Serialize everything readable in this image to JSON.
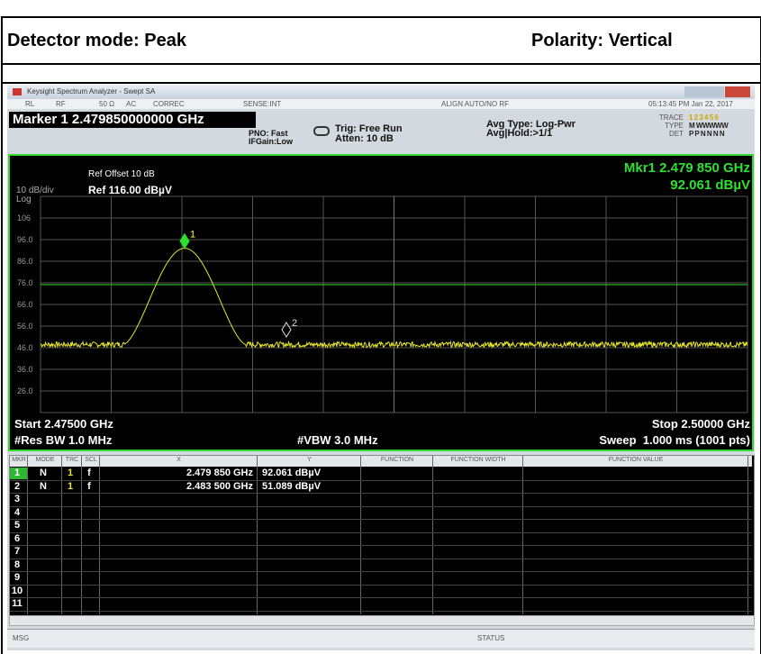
{
  "document": {
    "detector_mode": "Detector mode: Peak",
    "polarity": "Polarity: Vertical"
  },
  "window": {
    "title": "Keysight Spectrum Analyzer - Swept SA",
    "status_bar": [
      "RL",
      "RF",
      "50 Ω",
      "AC",
      "CORREC",
      "SENSE:INT",
      "ALIGN AUTO/NO RF",
      "05:13:45 PM Jan 22, 2017"
    ],
    "marker_readout": "Marker 1 2.479850000000 GHz",
    "settings": [
      "PNO: Fast",
      "IFGain:Low",
      "Trig: Free Run",
      "Atten: 10 dB",
      "Avg Type: Log-Pwr",
      "Avg|Hold:>1/1"
    ],
    "trace_labels": [
      "TRACE",
      "TYPE",
      "DET"
    ],
    "trace_values": [
      "1 2 3 4 5 6",
      "M WWWWW",
      "P P N N N N"
    ]
  },
  "display": {
    "ref_offset": "Ref Offset 10 dB",
    "scale": "10 dB/div",
    "ref_level": "Ref 116.00 dBµV",
    "scale_type": "Log",
    "marker_freq": "Mkr1 2.479 850 GHz",
    "marker_level": "92.061 dBµV",
    "y_labels": [
      "106",
      "96.0",
      "86.0",
      "76.0",
      "66.0",
      "56.0",
      "46.0",
      "36.0",
      "26.0"
    ],
    "start": "Start 2.47500 GHz",
    "stop": "Stop 2.50000 GHz",
    "rbw": "#Res BW 1.0 MHz",
    "vbw": "#VBW 3.0 MHz",
    "sweep": "Sweep  1.000 ms (1001 pts)",
    "markers": [
      "1",
      "2"
    ]
  },
  "table": {
    "headers": [
      "MKR",
      "MODE",
      "TRC",
      "SCL",
      "X",
      "Y",
      "FUNCTION",
      "FUNCTION WIDTH",
      "FUNCTION VALUE"
    ],
    "rows": [
      [
        "1",
        "N",
        "1",
        "f",
        "2.479 850 GHz",
        "92.061 dBµV"
      ],
      [
        "2",
        "N",
        "1",
        "f",
        "2.483 500 GHz",
        "51.089 dBµV"
      ],
      [
        "3"
      ],
      [
        "4"
      ],
      [
        "5"
      ],
      [
        "6"
      ],
      [
        "7"
      ],
      [
        "8"
      ],
      [
        "9"
      ],
      [
        "10"
      ],
      [
        "11"
      ]
    ]
  },
  "footer": {
    "msg": "MSG",
    "status": "STATUS"
  }
}
